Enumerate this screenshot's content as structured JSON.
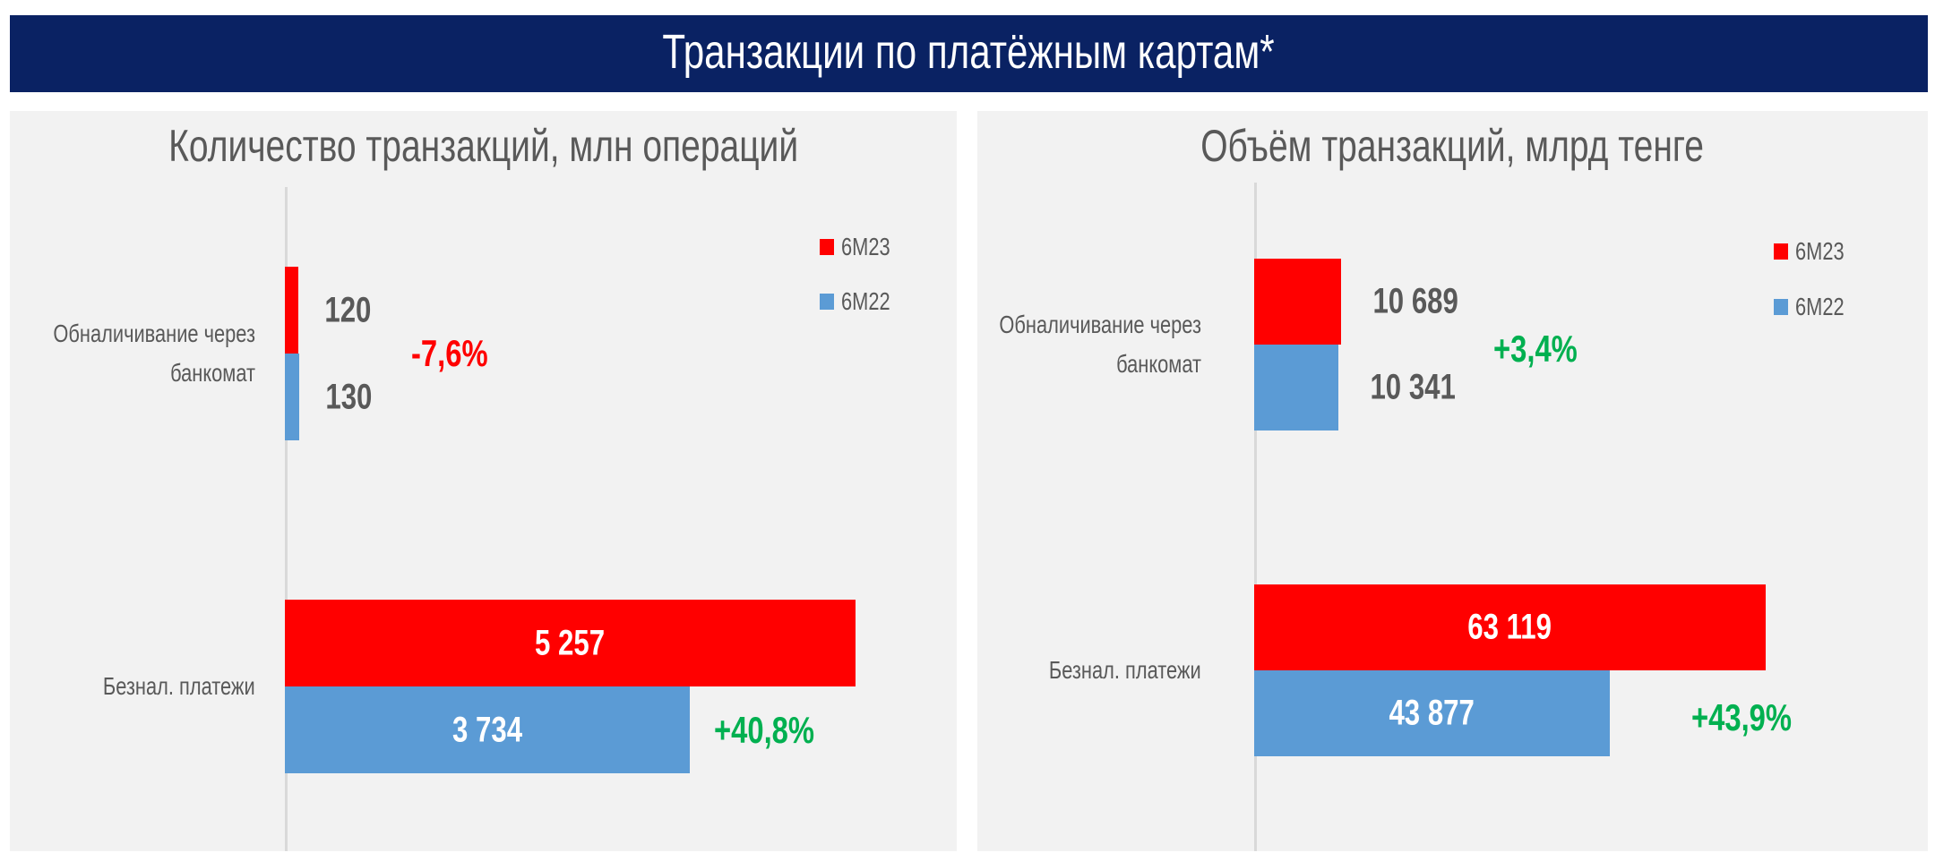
{
  "header": {
    "title": "Транзакции по платёжным картам*"
  },
  "colors": {
    "header_bg": "#0a2263",
    "6M23": "#ff0000",
    "6M22": "#5b9bd5",
    "positive": "#00b050",
    "negative": "#ff0000"
  },
  "chart_data": [
    {
      "type": "bar",
      "orientation": "horizontal",
      "title": "Количество транзакций, млн операций",
      "categories": [
        "Обналичивание через банкомат",
        "Безнал. платежи"
      ],
      "series": [
        {
          "name": "6M23",
          "values": [
            120,
            5257
          ],
          "labels": [
            "120",
            "5 257"
          ]
        },
        {
          "name": "6M22",
          "values": [
            130,
            3734
          ],
          "labels": [
            "130",
            "3 734"
          ]
        }
      ],
      "changes": [
        "-7,6%",
        "+40,8%"
      ],
      "legend": "top-right",
      "grid": false
    },
    {
      "type": "bar",
      "orientation": "horizontal",
      "title": "Объём транзакций, млрд тенге",
      "categories": [
        "Обналичивание через банкомат",
        "Безнал. платежи"
      ],
      "series": [
        {
          "name": "6M23",
          "values": [
            10689,
            63119
          ],
          "labels": [
            "10 689",
            "63 119"
          ]
        },
        {
          "name": "6M22",
          "values": [
            10341,
            43877
          ],
          "labels": [
            "10 341",
            "43 877"
          ]
        }
      ],
      "changes": [
        "+3,4%",
        "+43,9%"
      ],
      "legend": "top-right",
      "grid": false
    }
  ]
}
